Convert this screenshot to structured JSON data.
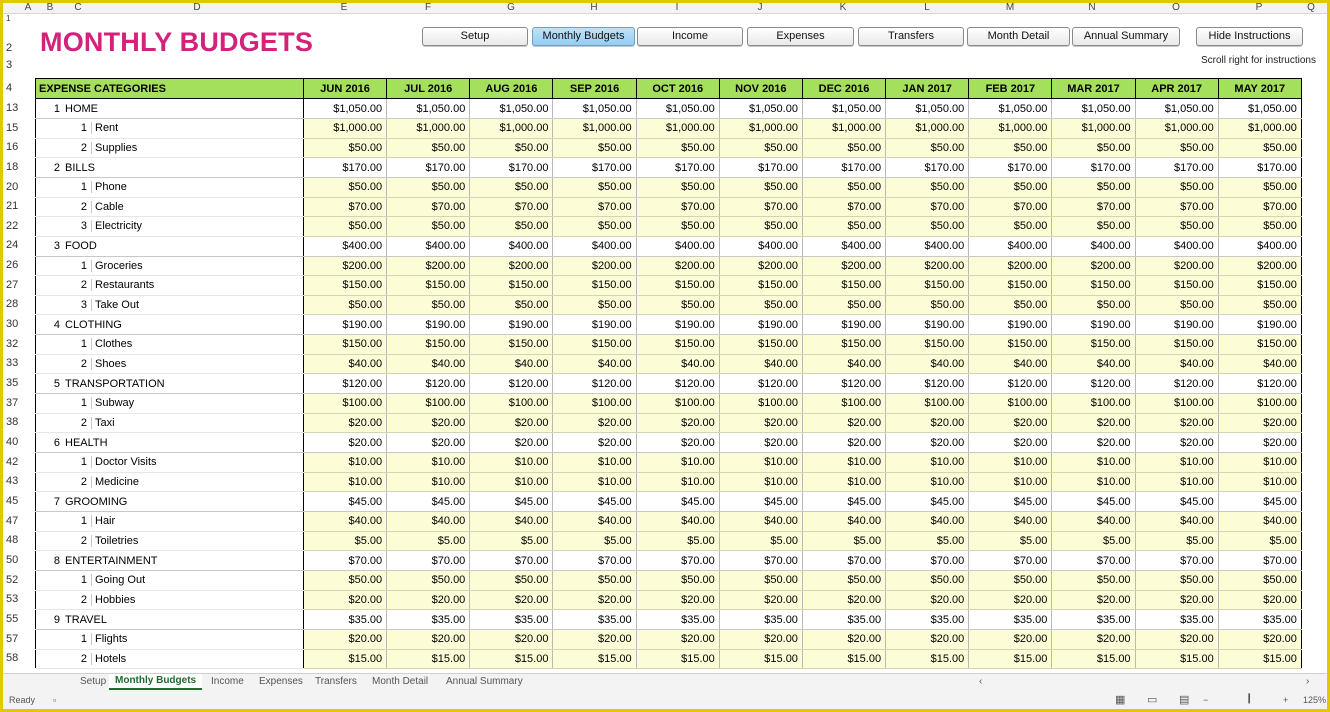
{
  "sheet": {
    "title": "MONTHLY BUDGETS",
    "scroll_note": "Scroll right for instructions",
    "column_letters": [
      "A",
      "B",
      "C",
      "D",
      "E",
      "F",
      "G",
      "H",
      "I",
      "J",
      "K",
      "L",
      "M",
      "N",
      "O",
      "P",
      "Q"
    ],
    "top_row_numbers": [
      "1",
      "2",
      "3",
      "4"
    ]
  },
  "nav_buttons": [
    {
      "label": "Setup",
      "active": false
    },
    {
      "label": "Monthly Budgets",
      "active": true
    },
    {
      "label": "Income",
      "active": false
    },
    {
      "label": "Expenses",
      "active": false
    },
    {
      "label": "Transfers",
      "active": false
    },
    {
      "label": "Month Detail",
      "active": false
    },
    {
      "label": "Annual Summary",
      "active": false
    },
    {
      "label": "Hide Instructions",
      "active": false
    }
  ],
  "table": {
    "category_header": "EXPENSE CATEGORIES",
    "months": [
      "JUN 2016",
      "JUL 2016",
      "AUG 2016",
      "SEP 2016",
      "OCT 2016",
      "NOV 2016",
      "DEC 2016",
      "JAN 2017",
      "FEB 2017",
      "MAR 2017",
      "APR 2017",
      "MAY 2017"
    ],
    "rows": [
      {
        "row": "13",
        "type": "group",
        "num": "1",
        "name": "HOME",
        "value": "$1,050.00"
      },
      {
        "row": "15",
        "type": "item",
        "num": "1",
        "name": "Rent",
        "value": "$1,000.00"
      },
      {
        "row": "16",
        "type": "item",
        "num": "2",
        "name": "Supplies",
        "value": "$50.00"
      },
      {
        "row": "18",
        "type": "group",
        "num": "2",
        "name": "BILLS",
        "value": "$170.00"
      },
      {
        "row": "20",
        "type": "item",
        "num": "1",
        "name": "Phone",
        "value": "$50.00"
      },
      {
        "row": "21",
        "type": "item",
        "num": "2",
        "name": "Cable",
        "value": "$70.00"
      },
      {
        "row": "22",
        "type": "item",
        "num": "3",
        "name": "Electricity",
        "value": "$50.00"
      },
      {
        "row": "24",
        "type": "group",
        "num": "3",
        "name": "FOOD",
        "value": "$400.00"
      },
      {
        "row": "26",
        "type": "item",
        "num": "1",
        "name": "Groceries",
        "value": "$200.00"
      },
      {
        "row": "27",
        "type": "item",
        "num": "2",
        "name": "Restaurants",
        "value": "$150.00"
      },
      {
        "row": "28",
        "type": "item",
        "num": "3",
        "name": "Take Out",
        "value": "$50.00"
      },
      {
        "row": "30",
        "type": "group",
        "num": "4",
        "name": "CLOTHING",
        "value": "$190.00"
      },
      {
        "row": "32",
        "type": "item",
        "num": "1",
        "name": "Clothes",
        "value": "$150.00"
      },
      {
        "row": "33",
        "type": "item",
        "num": "2",
        "name": "Shoes",
        "value": "$40.00"
      },
      {
        "row": "35",
        "type": "group",
        "num": "5",
        "name": "TRANSPORTATION",
        "value": "$120.00"
      },
      {
        "row": "37",
        "type": "item",
        "num": "1",
        "name": "Subway",
        "value": "$100.00"
      },
      {
        "row": "38",
        "type": "item",
        "num": "2",
        "name": "Taxi",
        "value": "$20.00"
      },
      {
        "row": "40",
        "type": "group",
        "num": "6",
        "name": "HEALTH",
        "value": "$20.00"
      },
      {
        "row": "42",
        "type": "item",
        "num": "1",
        "name": "Doctor Visits",
        "value": "$10.00"
      },
      {
        "row": "43",
        "type": "item",
        "num": "2",
        "name": "Medicine",
        "value": "$10.00"
      },
      {
        "row": "45",
        "type": "group",
        "num": "7",
        "name": "GROOMING",
        "value": "$45.00"
      },
      {
        "row": "47",
        "type": "item",
        "num": "1",
        "name": "Hair",
        "value": "$40.00"
      },
      {
        "row": "48",
        "type": "item",
        "num": "2",
        "name": "Toiletries",
        "value": "$5.00"
      },
      {
        "row": "50",
        "type": "group",
        "num": "8",
        "name": "ENTERTAINMENT",
        "value": "$70.00"
      },
      {
        "row": "52",
        "type": "item",
        "num": "1",
        "name": "Going Out",
        "value": "$50.00"
      },
      {
        "row": "53",
        "type": "item",
        "num": "2",
        "name": "Hobbies",
        "value": "$20.00"
      },
      {
        "row": "55",
        "type": "group",
        "num": "9",
        "name": "TRAVEL",
        "value": "$35.00"
      },
      {
        "row": "57",
        "type": "item",
        "num": "1",
        "name": "Flights",
        "value": "$20.00"
      },
      {
        "row": "58",
        "type": "item",
        "num": "2",
        "name": "Hotels",
        "value": "$15.00"
      }
    ]
  },
  "sheet_tabs": [
    {
      "label": "Setup",
      "active": false
    },
    {
      "label": "Monthly Budgets",
      "active": true
    },
    {
      "label": "Income",
      "active": false
    },
    {
      "label": "Expenses",
      "active": false
    },
    {
      "label": "Transfers",
      "active": false
    },
    {
      "label": "Month Detail",
      "active": false
    },
    {
      "label": "Annual Summary",
      "active": false
    }
  ],
  "status": {
    "ready": "Ready",
    "zoom": "125%",
    "icons": [
      "normal-view-icon",
      "page-layout-icon",
      "page-break-icon",
      "zoom-out-icon",
      "zoom-slider-icon",
      "zoom-in-icon"
    ]
  }
}
